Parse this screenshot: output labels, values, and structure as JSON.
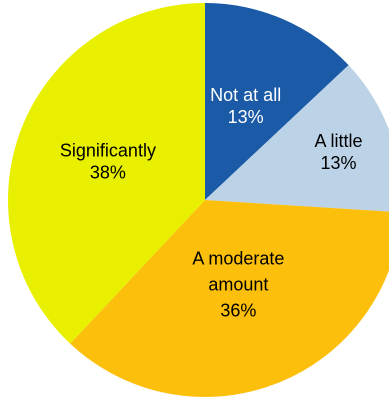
{
  "chart_data": {
    "type": "pie",
    "title": "",
    "slices": [
      {
        "label": "Not at all",
        "value": 13,
        "value_text": "13%",
        "color": "#1a5aa6",
        "text_color": "#ffffff"
      },
      {
        "label": "A little",
        "value": 13,
        "value_text": "13%",
        "color": "#bcd3e7",
        "text_color": "#000000"
      },
      {
        "label": "A moderate amount",
        "label_lines": [
          "A moderate",
          "amount"
        ],
        "value": 36,
        "value_text": "36%",
        "color": "#fbbf0c",
        "text_color": "#000000"
      },
      {
        "label": "Significantly",
        "value": 38,
        "value_text": "38%",
        "color": "#e8f000",
        "text_color": "#000000"
      }
    ],
    "start_angle_deg": 0,
    "direction": "clockwise",
    "legend": "none"
  }
}
